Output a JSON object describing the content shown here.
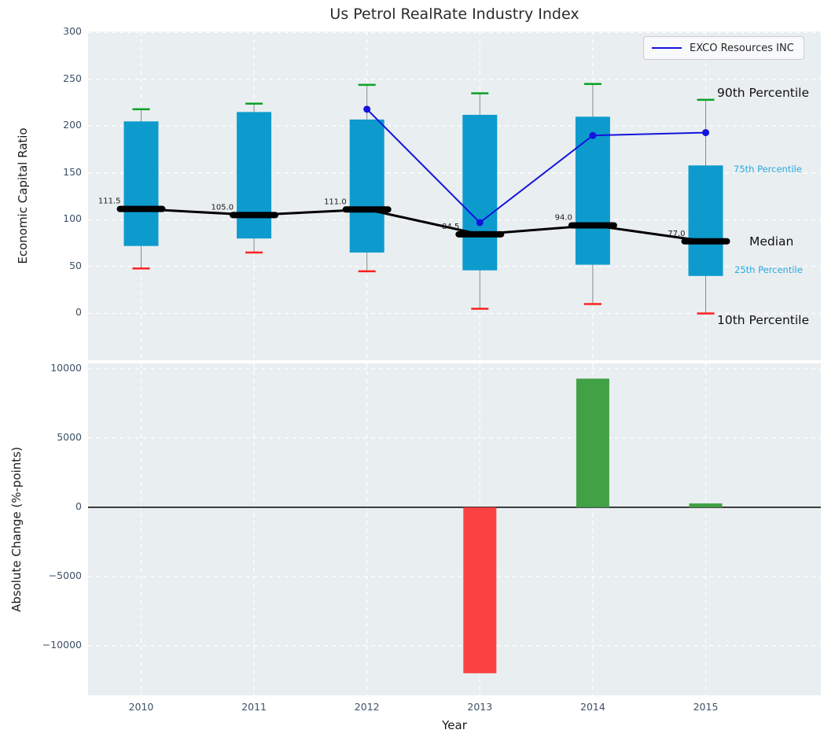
{
  "title": "Us Petrol RealRate Industry Index",
  "legend": {
    "label": "EXCO Resources INC"
  },
  "annotations": {
    "p90": "90th Percentile",
    "p75": "75th Percentile",
    "median": "Median",
    "p25": "25th Percentile",
    "p10": "10th Percentile"
  },
  "axes": {
    "top": {
      "ylabel": "Economic Capital Ratio"
    },
    "bottom": {
      "ylabel": "Absolute Change (%-points)",
      "xlabel": "Year"
    }
  },
  "chart_data": [
    {
      "type": "percentile-box",
      "title": "Us Petrol RealRate Industry Index",
      "ylabel": "Economic Capital Ratio",
      "xlabel": "",
      "ylim": [
        -50,
        301
      ],
      "xlim": [
        2009.53,
        2016.02
      ],
      "yticks": [
        0,
        50,
        100,
        150,
        200,
        250,
        300
      ],
      "grid": true,
      "legend_position": "upper right",
      "categories": [
        2010,
        2011,
        2012,
        2013,
        2014,
        2015
      ],
      "series": [
        {
          "name": "10th Percentile",
          "values": [
            48,
            65,
            45,
            5,
            10,
            0
          ]
        },
        {
          "name": "25th Percentile",
          "values": [
            72,
            80,
            65,
            46,
            52,
            40
          ]
        },
        {
          "name": "Median",
          "values": [
            111.5,
            105.0,
            111.0,
            84.5,
            94.0,
            77.0
          ]
        },
        {
          "name": "75th Percentile",
          "values": [
            205,
            215,
            207,
            212,
            210,
            158
          ]
        },
        {
          "name": "90th Percentile",
          "values": [
            218,
            224,
            244,
            235,
            245,
            228
          ]
        },
        {
          "name": "EXCO Resources INC",
          "x": [
            2012,
            2013,
            2014,
            2015
          ],
          "values": [
            218,
            97,
            190,
            193
          ]
        }
      ],
      "median_labels": [
        "111.5",
        "105.0",
        "111.0",
        "84.5",
        "94.0",
        "77.0"
      ]
    },
    {
      "type": "bar",
      "title": "",
      "ylabel": "Absolute Change (%-points)",
      "xlabel": "Year",
      "ylim": [
        -13600,
        10400
      ],
      "xlim": [
        2009.53,
        2016.02
      ],
      "yticks": [
        10000,
        5000,
        0,
        -5000,
        -10000
      ],
      "grid": true,
      "categories": [
        2010,
        2011,
        2012,
        2013,
        2014,
        2015
      ],
      "values": [
        null,
        null,
        null,
        -12000,
        9300,
        280
      ]
    }
  ],
  "colors": {
    "box_fill": "#0d9bce",
    "whisker_line": "#888888",
    "cap_90th": "#0aa127",
    "cap_10th": "#fd2020",
    "median_line": "#000000",
    "exco_line": "#1414dd",
    "bar_positive": "#41a245",
    "bar_negative": "#fb4141",
    "plot_background": "#e9eef0",
    "gridline": "#ffffff",
    "tick_label": "#3d5166",
    "percentile_label": "#2aa9e0",
    "zero_line": "#000000"
  }
}
